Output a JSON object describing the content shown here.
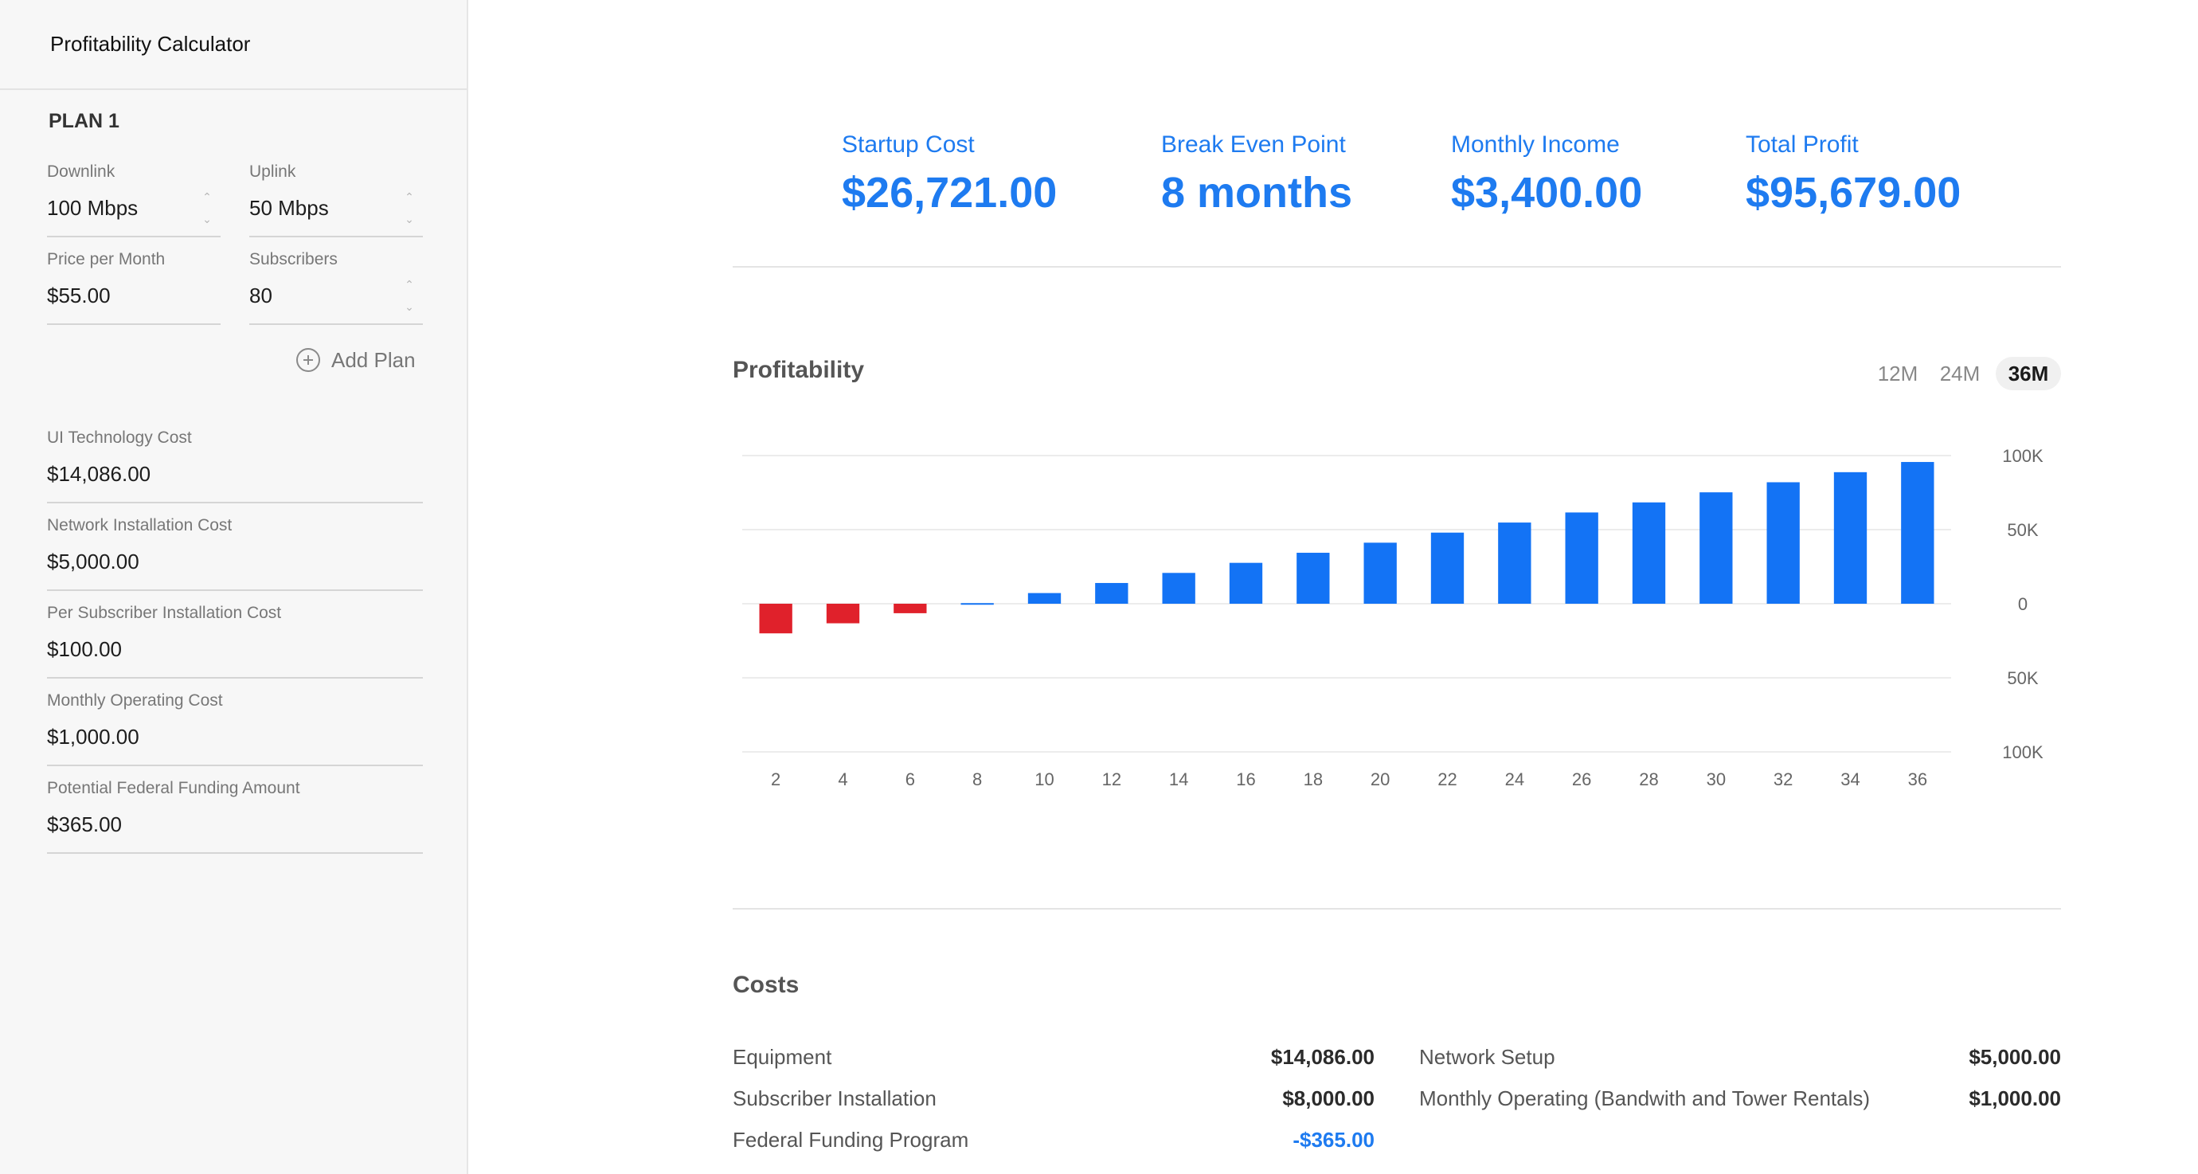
{
  "app": {
    "title": "Profitability Calculator"
  },
  "plan": {
    "heading": "PLAN 1",
    "fields": [
      {
        "label": "Downlink",
        "value": "100 Mbps"
      },
      {
        "label": "Uplink",
        "value": "50 Mbps"
      },
      {
        "label": "Price per Month",
        "value": "$55.00"
      },
      {
        "label": "Subscribers",
        "value": "80"
      }
    ],
    "add_plan_label": "Add Plan"
  },
  "costs_inputs": [
    {
      "label": "UI Technology Cost",
      "value": "$14,086.00"
    },
    {
      "label": "Network Installation Cost",
      "value": "$5,000.00"
    },
    {
      "label": "Per Subscriber Installation Cost",
      "value": "$100.00"
    },
    {
      "label": "Monthly Operating Cost",
      "value": "$1,000.00"
    },
    {
      "label": "Potential Federal Funding Amount",
      "value": "$365.00"
    }
  ],
  "summary": [
    {
      "label": "Startup Cost",
      "value": "$26,721.00"
    },
    {
      "label": "Break Even Point",
      "value": "8 months"
    },
    {
      "label": "Monthly Income",
      "value": "$3,400.00"
    },
    {
      "label": "Total Profit",
      "value": "$95,679.00"
    }
  ],
  "chart_section": {
    "title": "Profitability",
    "ranges": [
      "12M",
      "24M",
      "36M"
    ],
    "active_range": "36M"
  },
  "chart_data": {
    "type": "bar",
    "categories": [
      "2",
      "4",
      "6",
      "8",
      "10",
      "12",
      "14",
      "16",
      "18",
      "20",
      "22",
      "24",
      "26",
      "28",
      "30",
      "32",
      "34",
      "36"
    ],
    "values": [
      -20000,
      -13200,
      -6400,
      400,
      7200,
      14000,
      20800,
      27600,
      34400,
      41200,
      48000,
      54800,
      61600,
      68400,
      75200,
      82000,
      88800,
      95679
    ],
    "ylim": [
      -100000,
      100000
    ],
    "yticks": [
      100000,
      50000,
      0,
      -50000,
      -100000
    ],
    "ytick_labels": [
      "100K",
      "50K",
      "0",
      "50K",
      "100K"
    ],
    "positive_color": "#1373f5",
    "negative_color": "#e0212b",
    "grid": true
  },
  "costs": {
    "title": "Costs",
    "left": [
      {
        "label": "Equipment",
        "value": "$14,086.00"
      },
      {
        "label": "Subscriber Installation",
        "value": "$8,000.00"
      },
      {
        "label": "Federal Funding Program",
        "value": "-$365.00",
        "negative": true
      }
    ],
    "right": [
      {
        "label": "Network Setup",
        "value": "$5,000.00"
      },
      {
        "label": "Monthly Operating (Bandwith and Tower Rentals)",
        "value": "$1,000.00"
      }
    ]
  }
}
